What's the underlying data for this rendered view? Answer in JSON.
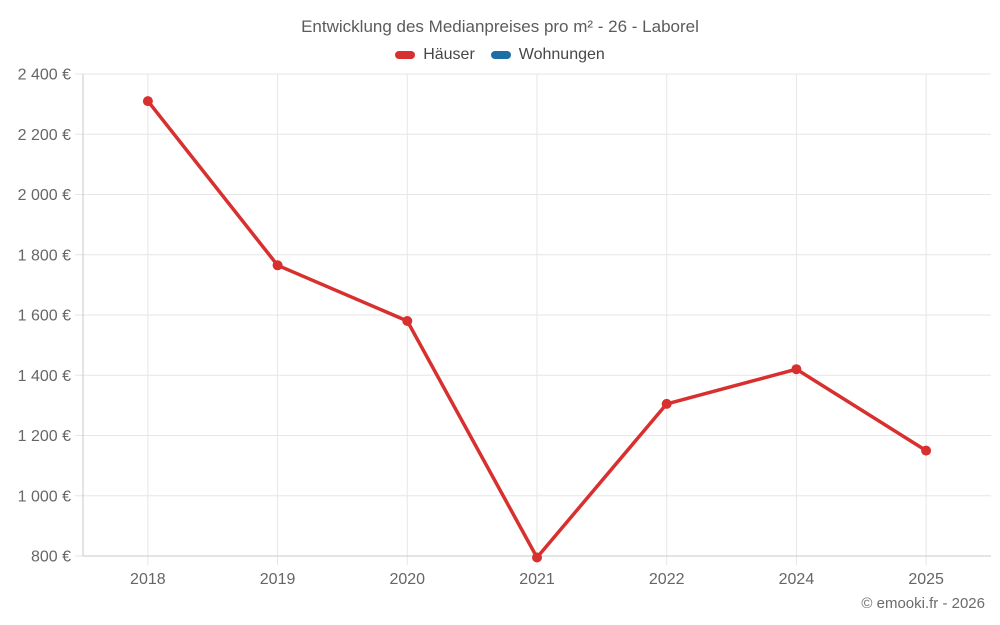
{
  "page": {
    "credit": "© emooki.fr - 2026"
  },
  "chart_data": {
    "type": "line",
    "title": "Entwicklung des Medianpreises pro m² - 26 - Laborel",
    "categories": [
      "2018",
      "2019",
      "2020",
      "2021",
      "2022",
      "2024",
      "2025"
    ],
    "series": [
      {
        "name": "Häuser",
        "color": "#d7302e",
        "values": [
          2310,
          1765,
          1580,
          795,
          1305,
          1420,
          1150
        ]
      },
      {
        "name": "Wohnungen",
        "color": "#1c6ea4",
        "values": [
          null,
          null,
          null,
          null,
          null,
          null,
          null
        ]
      }
    ],
    "ylim": [
      800,
      2400
    ],
    "ytick_step": 200,
    "yticks": [
      "800 €",
      "1 000 €",
      "1 200 €",
      "1 400 €",
      "1 600 €",
      "1 800 €",
      "2 000 €",
      "2 200 €",
      "2 400 €"
    ],
    "xlabel": "",
    "ylabel": "",
    "grid": true,
    "legend_position": "top",
    "colors": {
      "grid_line": "#e6e6e6",
      "axis_line": "#c8c8c8",
      "axis_label": "#666666",
      "title_text": "#5b5b5b"
    }
  }
}
